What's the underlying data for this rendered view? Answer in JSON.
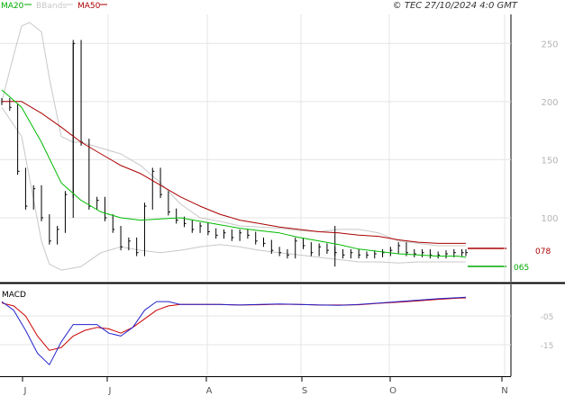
{
  "header": {
    "legend": [
      {
        "label": "MA20",
        "color": "#00aa00"
      },
      {
        "label": "BBands",
        "color": "#c8c8c8"
      },
      {
        "label": "MA50",
        "color": "#aa0000"
      }
    ],
    "copyright": "© TEC 27/10/2024 4:0 GMT"
  },
  "colors": {
    "price": "#000000",
    "ma20": "#00bb00",
    "ma50": "#aa0000",
    "bbands": "#c8c8c8",
    "macd": "#2222cc",
    "signal": "#cc0000",
    "grid": "#e4e4e4"
  },
  "tags": {
    "ma50_value": "078",
    "ma20_value": "065"
  },
  "chart_data": [
    {
      "type": "line",
      "series": [
        {
          "name": "MA20",
          "x": [
            0,
            5,
            10,
            15,
            20,
            25,
            30,
            35,
            40,
            45,
            50,
            55,
            60,
            65,
            70,
            75,
            80,
            85,
            90,
            95,
            100,
            105,
            110,
            115,
            117
          ],
          "values": [
            210,
            195,
            165,
            130,
            115,
            105,
            100,
            98,
            99,
            100,
            97,
            94,
            91,
            89,
            87,
            83,
            80,
            77,
            73,
            71,
            69,
            68,
            67,
            67,
            66
          ]
        },
        {
          "name": "BBands",
          "upper": {
            "x": [
              0,
              3,
              5,
              7,
              10,
              12,
              15,
              18,
              20,
              25,
              30,
              35,
              40,
              45,
              50,
              55,
              60,
              65,
              70,
              75,
              80,
              85,
              90,
              95,
              100,
              105,
              110,
              115,
              117
            ],
            "values": [
              200,
              240,
              265,
              268,
              260,
              220,
              170,
              165,
              165,
              160,
              155,
              145,
              130,
              112,
              100,
              97,
              93,
              92,
              91,
              89,
              88,
              90,
              90,
              87,
              80,
              78,
              76,
              76,
              76
            ]
          },
          "lower": {
            "x": [
              0,
              5,
              10,
              12,
              15,
              20,
              25,
              30,
              35,
              40,
              45,
              50,
              55,
              60,
              65,
              70,
              75,
              80,
              85,
              90,
              95,
              100,
              105,
              110,
              115,
              117
            ],
            "values": [
              195,
              170,
              80,
              60,
              55,
              58,
              70,
              75,
              72,
              70,
              72,
              75,
              77,
              75,
              72,
              70,
              68,
              66,
              64,
              62,
              62,
              61,
              62,
              62,
              62,
              62
            ]
          }
        },
        {
          "name": "MA50",
          "x": [
            0,
            5,
            10,
            15,
            20,
            25,
            30,
            35,
            40,
            45,
            50,
            55,
            60,
            65,
            70,
            75,
            80,
            85,
            90,
            95,
            100,
            105,
            110,
            115,
            117
          ],
          "values": [
            200,
            200,
            190,
            178,
            165,
            155,
            145,
            138,
            128,
            118,
            110,
            103,
            98,
            95,
            92,
            90,
            88,
            87,
            85,
            84,
            81,
            79,
            78,
            78,
            78
          ]
        },
        {
          "name": "Price",
          "x": [
            0,
            2,
            4,
            6,
            8,
            10,
            12,
            14,
            16,
            18,
            20,
            22,
            24,
            26,
            28,
            30,
            32,
            34,
            36,
            38,
            40,
            42,
            44,
            46,
            48,
            50,
            52,
            54,
            56,
            58,
            60,
            62,
            64,
            66,
            68,
            70,
            72,
            74,
            76,
            78,
            80,
            82,
            84,
            86,
            88,
            90,
            92,
            94,
            96,
            98,
            100,
            102,
            104,
            106,
            108,
            110,
            112,
            114,
            116,
            117
          ],
          "values": [
            200,
            195,
            140,
            110,
            125,
            100,
            80,
            90,
            120,
            250,
            165,
            110,
            115,
            100,
            90,
            75,
            80,
            70,
            110,
            140,
            120,
            105,
            98,
            95,
            90,
            93,
            88,
            85,
            87,
            83,
            87,
            85,
            80,
            78,
            72,
            70,
            68,
            80,
            76,
            70,
            75,
            72,
            70,
            68,
            70,
            68,
            68,
            69,
            70,
            72,
            76,
            70,
            69,
            70,
            68,
            68,
            69,
            70,
            70,
            70
          ]
        },
        {
          "name": "Price range",
          "x": [
            18,
            84
          ],
          "low": [
            100,
            58
          ],
          "high": [
            250,
            93
          ]
        }
      ],
      "xlabel": "",
      "ylabel": "",
      "x_tick_labels": [
        "J",
        "J",
        "A",
        "S",
        "O",
        "N"
      ],
      "y_tick_labels": [
        "250",
        "200",
        "150",
        "100"
      ],
      "ylim": [
        45,
        275
      ],
      "grid": true
    },
    {
      "type": "line",
      "title": "MACD",
      "series": [
        {
          "name": "MACD",
          "x": [
            0,
            3,
            6,
            9,
            12,
            15,
            18,
            21,
            24,
            27,
            30,
            33,
            36,
            39,
            42,
            45,
            48,
            50,
            55,
            60,
            65,
            70,
            75,
            80,
            85,
            90,
            95,
            100,
            105,
            110,
            115,
            117
          ],
          "values": [
            0,
            -3,
            -10,
            -18,
            -22,
            -14,
            -8,
            -8,
            -8,
            -11,
            -12,
            -9,
            -3,
            0,
            0,
            -1,
            -1,
            -1,
            -1,
            -1.2,
            -1,
            -0.8,
            -1,
            -1.2,
            -1.3,
            -1,
            -0.5,
            0,
            0.5,
            1,
            1.4,
            1.5
          ]
        },
        {
          "name": "Signal",
          "x": [
            0,
            3,
            6,
            9,
            12,
            15,
            18,
            21,
            24,
            27,
            30,
            33,
            36,
            39,
            42,
            45,
            48,
            50,
            55,
            60,
            65,
            70,
            75,
            80,
            85,
            90,
            95,
            100,
            105,
            110,
            115,
            117
          ],
          "values": [
            -0.5,
            -1.5,
            -5,
            -12,
            -17,
            -16,
            -12,
            -10,
            -9,
            -9.5,
            -11,
            -9,
            -6,
            -3,
            -1.5,
            -1,
            -1,
            -1,
            -1,
            -1.2,
            -1.1,
            -0.9,
            -1,
            -1.2,
            -1.2,
            -1.1,
            -0.6,
            -0.2,
            0.3,
            0.8,
            1.2,
            1.3
          ]
        }
      ],
      "y_tick_labels": [
        "-05",
        "-15"
      ],
      "grid": true
    }
  ]
}
